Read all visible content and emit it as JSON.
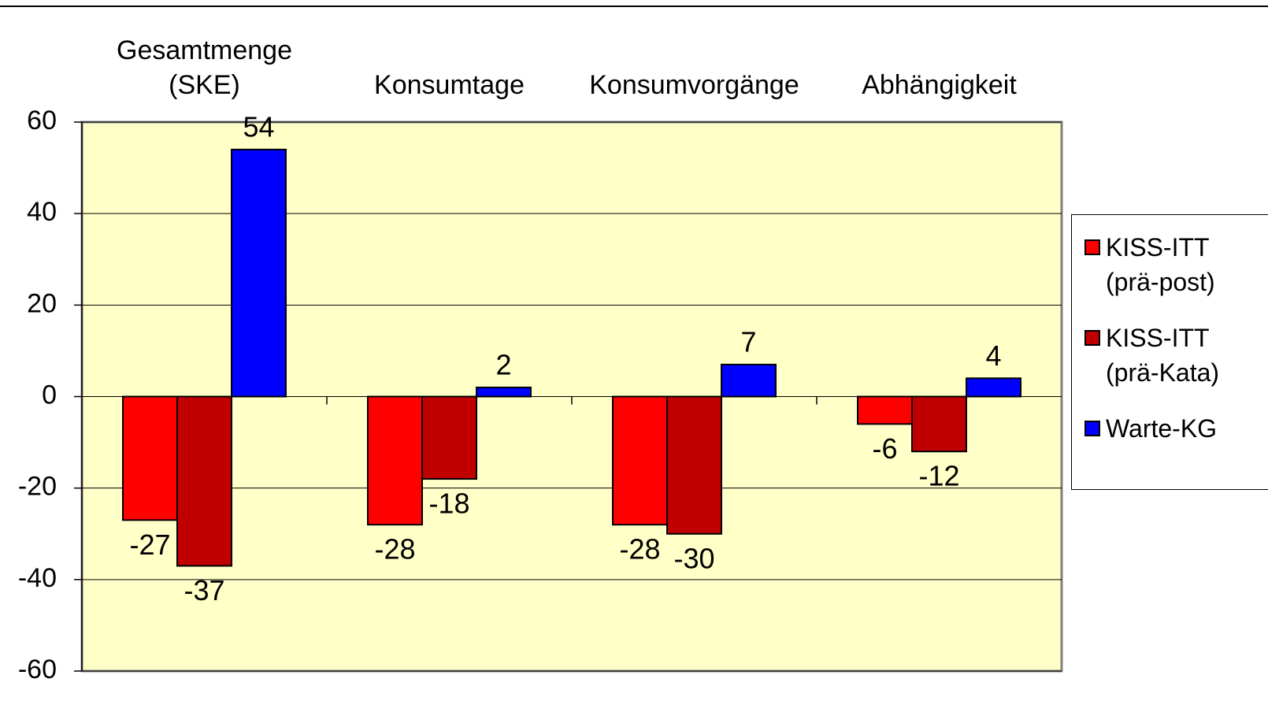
{
  "chart_data": {
    "type": "bar",
    "categories": [
      "Gesamtmenge\n(SKE)",
      "Konsumtage",
      "Konsumvorgänge",
      "Abhängigkeit"
    ],
    "series": [
      {
        "name": "KISS-ITT\n(prä-post)",
        "color": "#ff0000",
        "values": [
          -27,
          -28,
          -28,
          -6
        ]
      },
      {
        "name": "KISS-ITT\n(prä-Kata)",
        "color": "#c00000",
        "values": [
          -37,
          -18,
          -30,
          -12
        ]
      },
      {
        "name": "Warte-KG",
        "color": "#0000ff",
        "values": [
          54,
          2,
          7,
          4
        ]
      }
    ],
    "ylim": [
      -60,
      60
    ],
    "yticks": [
      -60,
      -40,
      -20,
      0,
      20,
      40,
      60
    ],
    "grid": true,
    "plot_background": "#ffffc8",
    "legend": "right"
  }
}
